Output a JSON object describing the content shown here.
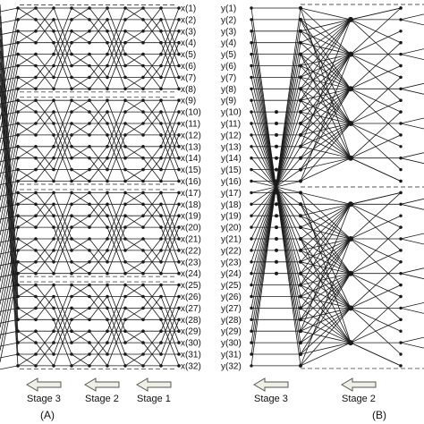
{
  "panel_a": {
    "label": "(A)",
    "signal_labels": [
      "x(1)",
      "x(2)",
      "x(3)",
      "x(4)",
      "x(5)",
      "x(6)",
      "x(7)",
      "x(8)",
      "x(9)",
      "x(10)",
      "x(11)",
      "x(12)",
      "x(13)",
      "x(14)",
      "x(15)",
      "x(16)",
      "x(17)",
      "x(18)",
      "x(19)",
      "x(20)",
      "x(21)",
      "x(22)",
      "x(23)",
      "x(24)",
      "x(25)",
      "x(26)",
      "x(27)",
      "x(28)",
      "x(29)",
      "x(30)",
      "x(31)",
      "x(32)"
    ],
    "stages": [
      "Stage 3",
      "Stage 2",
      "Stage 1"
    ]
  },
  "panel_b": {
    "label": "(B)",
    "signal_labels": [
      "y(1)",
      "y(2)",
      "y(3)",
      "y(4)",
      "y(5)",
      "y(6)",
      "y(7)",
      "y(8)",
      "y(9)",
      "y(10)",
      "y(11)",
      "y(12)",
      "y(13)",
      "y(14)",
      "y(15)",
      "y(16)",
      "y(17)",
      "y(18)",
      "y(19)",
      "y(20)",
      "y(21)",
      "y(22)",
      "y(23)",
      "y(24)",
      "y(25)",
      "y(26)",
      "y(27)",
      "y(28)",
      "y(29)",
      "y(30)",
      "y(31)",
      "y(32)"
    ],
    "stages": [
      "Stage 3",
      "Stage 2"
    ]
  },
  "colors": {
    "line": "#1a1a1a",
    "arrow_fill": "#eef0e3",
    "arrow_stroke": "#555555"
  }
}
